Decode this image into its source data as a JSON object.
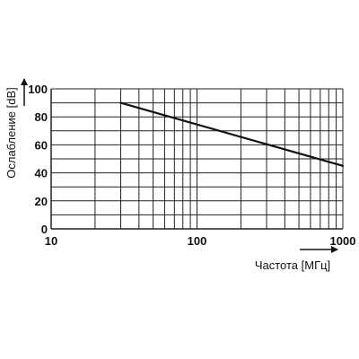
{
  "chart_data": {
    "type": "line",
    "title": "",
    "xlabel": "Частота [МГц]",
    "ylabel": "Ослабление [dB]",
    "x_scale": "log",
    "xlim": [
      10,
      1000
    ],
    "ylim": [
      0,
      100
    ],
    "x_ticks": [
      "10",
      "100",
      "1000"
    ],
    "y_ticks": [
      "0",
      "20",
      "40",
      "60",
      "80",
      "100"
    ],
    "grid": true,
    "legend": "none",
    "series": [
      {
        "x": [
          30,
          1000
        ],
        "y": [
          90,
          45
        ]
      }
    ],
    "colors": {
      "line": "#111111",
      "grid": "#222222",
      "text": "#111111"
    }
  }
}
